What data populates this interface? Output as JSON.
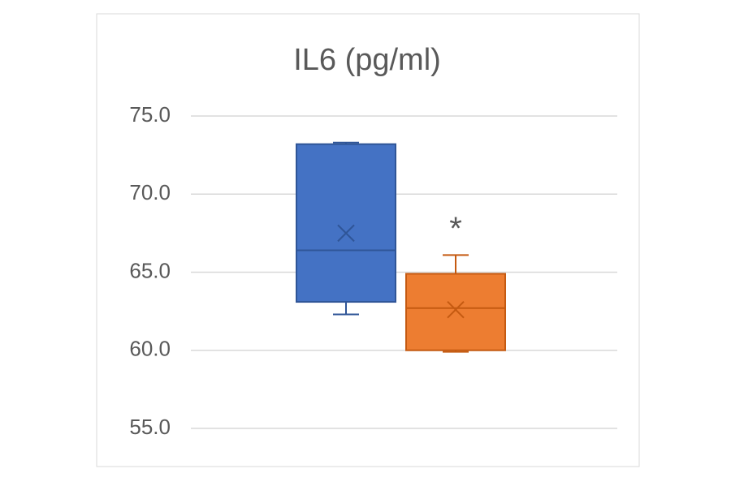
{
  "chart_data": {
    "type": "box",
    "title": "IL6 (pg/ml)",
    "ylim": [
      55,
      75
    ],
    "yticks": [
      {
        "value": 55,
        "label": "55.0"
      },
      {
        "value": 60,
        "label": "60.0"
      },
      {
        "value": 65,
        "label": "65.0"
      },
      {
        "value": 70,
        "label": "70.0"
      },
      {
        "value": 75,
        "label": "75.0"
      }
    ],
    "grid": true,
    "series": [
      {
        "color": "#4472c4",
        "min": 62.3,
        "q1": 63.1,
        "median": 66.4,
        "q3": 73.2,
        "max": 73.3,
        "mean": 67.5
      },
      {
        "color": "#ed7d31",
        "min": 59.9,
        "q1": 60.0,
        "median": 62.7,
        "q3": 64.9,
        "max": 66.1,
        "mean": 62.6,
        "annotation": "*"
      }
    ]
  }
}
